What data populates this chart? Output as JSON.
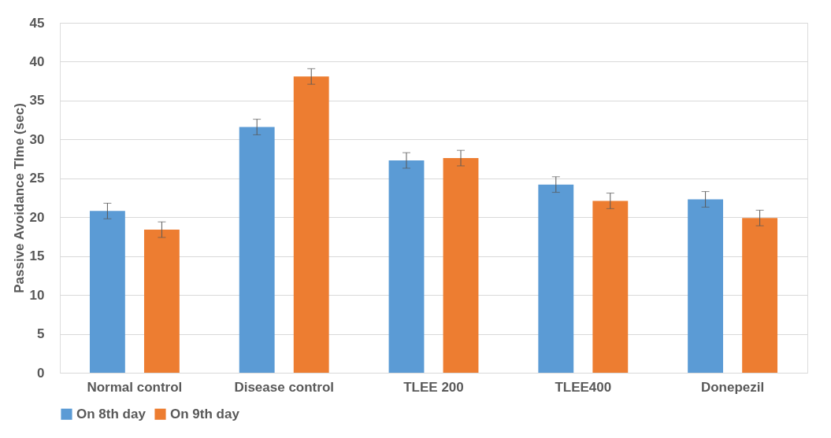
{
  "chart_data": {
    "type": "bar",
    "ylabel": "Passive Avoidance TIme (sec)",
    "categories": [
      "Normal control",
      "Disease control",
      "TLEE 200",
      "TLEE400",
      "Donepezil"
    ],
    "series": [
      {
        "name": "On 8th day",
        "color": "#5b9bd5",
        "values": [
          20.8,
          31.6,
          27.3,
          24.2,
          22.3
        ],
        "errors": [
          1,
          1,
          1,
          1,
          1
        ]
      },
      {
        "name": "On 9th day",
        "color": "#ed7d31",
        "values": [
          18.4,
          38.1,
          27.6,
          22.1,
          19.9
        ],
        "errors": [
          1,
          1,
          1,
          1,
          1
        ]
      }
    ],
    "ylim": [
      0,
      45
    ],
    "yticks": [
      0,
      5,
      10,
      15,
      20,
      25,
      30,
      35,
      40,
      45
    ],
    "grid": "y",
    "legend": "bottom"
  }
}
